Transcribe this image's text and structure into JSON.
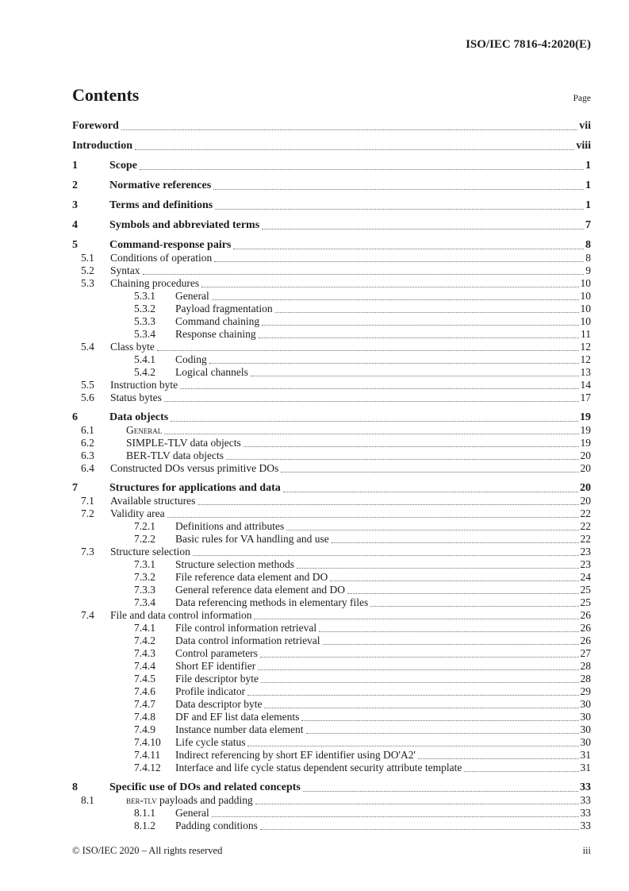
{
  "page": {
    "header_right": "ISO/IEC 7816-4:2020(E)",
    "footer_left": "© ISO/IEC 2020 – All rights reserved",
    "footer_right": "iii"
  },
  "toc": {
    "title": "Contents",
    "page_label": "Page",
    "front_entries": [
      {
        "title": "Foreword",
        "page": "vii"
      },
      {
        "title": "Introduction",
        "page": "viii"
      }
    ],
    "entries": [
      {
        "num": "1",
        "title": "Scope",
        "page": "1",
        "level": 1
      },
      {
        "num": "2",
        "title": "Normative references",
        "page": "1",
        "level": 1
      },
      {
        "num": "3",
        "title": "Terms and definitions",
        "page": "1",
        "level": 1
      },
      {
        "num": "4",
        "title": "Symbols and abbreviated terms",
        "page": "7",
        "level": 1
      },
      {
        "num": "5",
        "title": "Command-response pairs",
        "page": "8",
        "level": 1
      },
      {
        "num": "5.1",
        "title": "Conditions of operation",
        "page": "8",
        "level": 2
      },
      {
        "num": "5.2",
        "title": "Syntax",
        "page": "9",
        "level": 2
      },
      {
        "num": "5.3",
        "title": "Chaining procedures",
        "page": "10",
        "level": 2
      },
      {
        "num": "5.3.1",
        "title": "General",
        "page": "10",
        "level": 3
      },
      {
        "num": "5.3.2",
        "title": "Payload fragmentation",
        "page": "10",
        "level": 3
      },
      {
        "num": "5.3.3",
        "title": "Command chaining",
        "page": "10",
        "level": 3
      },
      {
        "num": "5.3.4",
        "title": "Response chaining",
        "page": "11",
        "level": 3
      },
      {
        "num": "5.4",
        "title": "Class byte",
        "page": "12",
        "level": 2
      },
      {
        "num": "5.4.1",
        "title": "Coding",
        "page": "12",
        "level": 3
      },
      {
        "num": "5.4.2",
        "title": "Logical channels",
        "page": "13",
        "level": 3
      },
      {
        "num": "5.5",
        "title": "Instruction byte",
        "page": "14",
        "level": 2
      },
      {
        "num": "5.6",
        "title": "Status bytes",
        "page": "17",
        "level": 2
      },
      {
        "num": "6",
        "title": "Data objects",
        "page": "19",
        "level": 1
      },
      {
        "num": "6.1",
        "title": "General",
        "page": "19",
        "level": 2,
        "indent": true,
        "sc": "all"
      },
      {
        "num": "6.2",
        "title": "SIMPLE-TLV data objects",
        "page": "19",
        "level": 2,
        "indent": true
      },
      {
        "num": "6.3",
        "title": "BER-TLV data objects",
        "page": "20",
        "level": 2,
        "indent": true
      },
      {
        "num": "6.4",
        "title": "Constructed DOs versus primitive DOs",
        "page": "20",
        "level": 2
      },
      {
        "num": "7",
        "title": "Structures for applications and data",
        "page": "20",
        "level": 1
      },
      {
        "num": "7.1",
        "title": "Available structures",
        "page": "20",
        "level": 2
      },
      {
        "num": "7.2",
        "title": "Validity area",
        "page": "22",
        "level": 2
      },
      {
        "num": "7.2.1",
        "title": "Definitions and attributes",
        "page": "22",
        "level": 3
      },
      {
        "num": "7.2.2",
        "title": "Basic rules for VA handling and use",
        "page": "22",
        "level": 3
      },
      {
        "num": "7.3",
        "title": "Structure selection",
        "page": "23",
        "level": 2
      },
      {
        "num": "7.3.1",
        "title": "Structure selection methods",
        "page": "23",
        "level": 3
      },
      {
        "num": "7.3.2",
        "title": "File reference data element and DO",
        "page": "24",
        "level": 3
      },
      {
        "num": "7.3.3",
        "title": "General reference data element and DO",
        "page": "25",
        "level": 3
      },
      {
        "num": "7.3.4",
        "title": "Data referencing methods in elementary files",
        "page": "25",
        "level": 3
      },
      {
        "num": "7.4",
        "title": "File and data control information",
        "page": "26",
        "level": 2
      },
      {
        "num": "7.4.1",
        "title": "File control information retrieval",
        "page": "26",
        "level": 3
      },
      {
        "num": "7.4.2",
        "title": "Data control information retrieval",
        "page": "26",
        "level": 3
      },
      {
        "num": "7.4.3",
        "title": "Control parameters",
        "page": "27",
        "level": 3
      },
      {
        "num": "7.4.4",
        "title": "Short EF identifier",
        "page": "28",
        "level": 3
      },
      {
        "num": "7.4.5",
        "title": "File descriptor byte",
        "page": "28",
        "level": 3
      },
      {
        "num": "7.4.6",
        "title": "Profile indicator",
        "page": "29",
        "level": 3
      },
      {
        "num": "7.4.7",
        "title": "Data descriptor byte",
        "page": "30",
        "level": 3
      },
      {
        "num": "7.4.8",
        "title": "DF and EF list data elements",
        "page": "30",
        "level": 3
      },
      {
        "num": "7.4.9",
        "title": "Instance number data element",
        "page": "30",
        "level": 3
      },
      {
        "num": "7.4.10",
        "title": "Life cycle status",
        "page": "30",
        "level": 3
      },
      {
        "num": "7.4.11",
        "title": "Indirect referencing by short EF identifier using DO'A2'",
        "page": "31",
        "level": 3
      },
      {
        "num": "7.4.12",
        "title": "Interface and life cycle status dependent security attribute template",
        "page": "31",
        "level": 3
      },
      {
        "num": "8",
        "title": "Specific use of DOs and related concepts",
        "page": "33",
        "level": 1
      },
      {
        "num": "8.1",
        "title": "BER-TLV payloads and padding",
        "page": "33",
        "level": 2,
        "indent": true,
        "sc": "prefix7"
      },
      {
        "num": "8.1.1",
        "title": "General",
        "page": "33",
        "level": 3
      },
      {
        "num": "8.1.2",
        "title": "Padding conditions",
        "page": "33",
        "level": 3
      }
    ]
  }
}
